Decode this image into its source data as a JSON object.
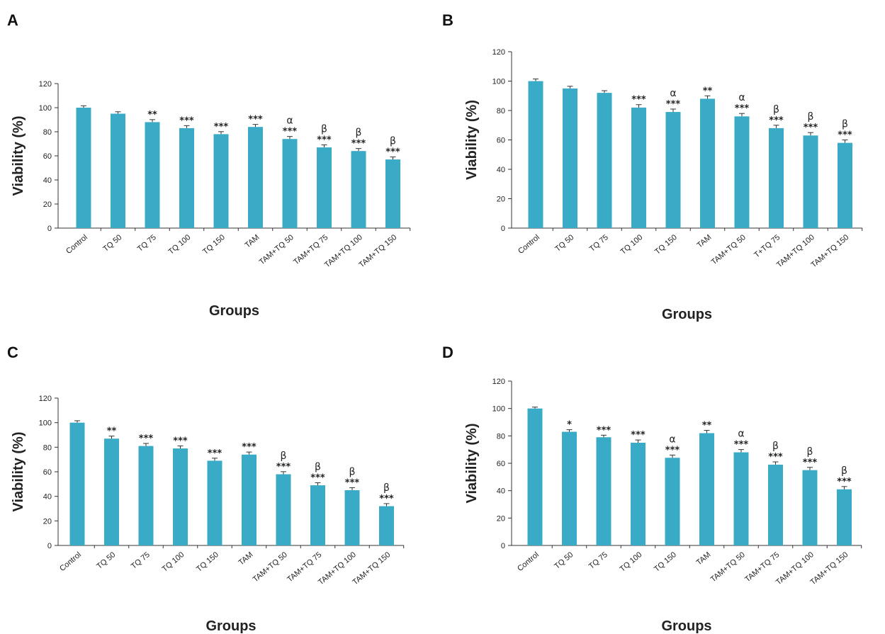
{
  "chart_data": [
    {
      "panel": "A",
      "type": "bar",
      "title": "",
      "xlabel": "Groups",
      "ylabel": "Viability (%)",
      "ylim": [
        0,
        120
      ],
      "yticks": [
        0,
        20,
        40,
        60,
        80,
        100,
        120
      ],
      "grid": false,
      "categories": [
        "Control",
        "TQ 50",
        "TQ 75",
        "TQ 100",
        "TQ 150",
        "TAM",
        "TAM+TQ 50",
        "TAM+TQ 75",
        "TAM+TQ 100",
        "TAM+TQ 150"
      ],
      "values": [
        100,
        95,
        88,
        83,
        78,
        84,
        74,
        67,
        64,
        57
      ],
      "errors": [
        1,
        1,
        1.5,
        1.5,
        1.5,
        1.5,
        1.5,
        1.5,
        1.5,
        1.5
      ],
      "significance": [
        "",
        "",
        "**",
        "***",
        "***",
        "***",
        "***",
        "***",
        "***",
        "***"
      ],
      "annotations": [
        "",
        "",
        "",
        "",
        "",
        "",
        "α",
        "β",
        "β",
        "β"
      ],
      "bar_color": "#3aabc7"
    },
    {
      "panel": "B",
      "type": "bar",
      "title": "",
      "xlabel": "Groups",
      "ylabel": "Viability (%)",
      "ylim": [
        0,
        120
      ],
      "yticks": [
        0,
        20,
        40,
        60,
        80,
        100,
        120
      ],
      "grid": false,
      "categories": [
        "Control",
        "TQ 50",
        "TQ 75",
        "TQ 100",
        "TQ 150",
        "TAM",
        "TAM+TQ 50",
        "T+TQ 75",
        "TAM+TQ 100",
        "TAM+TQ 150"
      ],
      "values": [
        100,
        95,
        92,
        82,
        79,
        88,
        76,
        68,
        63,
        58
      ],
      "errors": [
        1,
        1,
        1,
        1.5,
        1.5,
        1.5,
        1.5,
        1.5,
        1.5,
        1.5
      ],
      "significance": [
        "",
        "",
        "",
        "***",
        "***",
        "**",
        "***",
        "***",
        "***",
        "***"
      ],
      "annotations": [
        "",
        "",
        "",
        "",
        "α",
        "",
        "α",
        "β",
        "β",
        "β"
      ],
      "bar_color": "#3aabc7"
    },
    {
      "panel": "C",
      "type": "bar",
      "title": "",
      "xlabel": "Groups",
      "ylabel": "Viability (%)",
      "ylim": [
        0,
        120
      ],
      "yticks": [
        0,
        20,
        40,
        60,
        80,
        100,
        120
      ],
      "grid": false,
      "categories": [
        "Control",
        "TQ 50",
        "TQ 75",
        "TQ 100",
        "TQ 150",
        "TAM",
        "TAM+TQ 50",
        "TAM+TQ 75",
        "TAM+TQ 100",
        "TAM+TQ 150"
      ],
      "values": [
        100,
        87,
        81,
        79,
        69,
        74,
        58,
        49,
        45,
        32
      ],
      "errors": [
        1,
        1.5,
        1.5,
        1.5,
        1.5,
        1.5,
        1.5,
        1.5,
        1.5,
        1.5
      ],
      "significance": [
        "",
        "**",
        "***",
        "***",
        "***",
        "***",
        "***",
        "***",
        "***",
        "***"
      ],
      "annotations": [
        "",
        "",
        "",
        "",
        "",
        "",
        "β",
        "β",
        "β",
        "β"
      ],
      "bar_color": "#3aabc7"
    },
    {
      "panel": "D",
      "type": "bar",
      "title": "",
      "xlabel": "Groups",
      "ylabel": "Viability (%)",
      "ylim": [
        0,
        120
      ],
      "yticks": [
        0,
        20,
        40,
        60,
        80,
        100,
        120
      ],
      "grid": false,
      "categories": [
        "Control",
        "TQ 50",
        "TQ 75",
        "TQ 100",
        "TQ 150",
        "TAM",
        "TAM+TQ 50",
        "TAM+TQ 75",
        "TAM+TQ 100",
        "TAM+TQ 150"
      ],
      "values": [
        100,
        83,
        79,
        75,
        64,
        82,
        68,
        59,
        55,
        41
      ],
      "errors": [
        0.5,
        1,
        1,
        1.5,
        1.5,
        1.5,
        1.5,
        1.5,
        1.5,
        1.5
      ],
      "significance": [
        "",
        "*",
        "***",
        "***",
        "***",
        "**",
        "***",
        "***",
        "***",
        "***"
      ],
      "annotations": [
        "",
        "",
        "",
        "",
        "α",
        "",
        "α",
        "β",
        "β",
        "β"
      ],
      "bar_color": "#3aabc7"
    }
  ]
}
